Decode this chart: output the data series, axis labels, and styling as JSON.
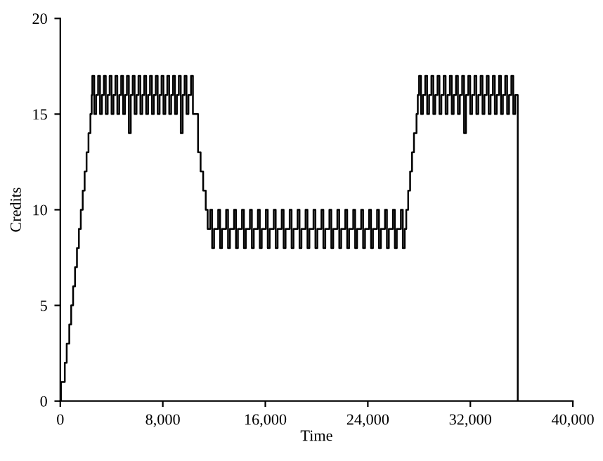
{
  "chart_data": {
    "type": "step",
    "xlabel": "Time",
    "ylabel": "Credits",
    "xlim": [
      0,
      40000
    ],
    "ylim": [
      0,
      20
    ],
    "xticks": [
      0,
      {
        "value": 8000,
        "label": "8,000"
      },
      {
        "value": 16000,
        "label": "16,000"
      },
      {
        "value": 24000,
        "label": "24,000"
      },
      {
        "value": 32000,
        "label": "32,000"
      },
      {
        "value": 40000,
        "label": "40,000"
      }
    ],
    "yticks": [
      0,
      5,
      10,
      15,
      20
    ],
    "grid": false,
    "legend": false,
    "marker": "none",
    "line_style": "solid",
    "series": [
      {
        "color": "#000000",
        "x": [
          0,
          50,
          350,
          500,
          700,
          850,
          1000,
          1150,
          1300,
          1450,
          1600,
          1750,
          1900,
          2050,
          2200,
          2350,
          2450,
          2500,
          2650,
          2800,
          2950,
          3100,
          3250,
          3400,
          3550,
          3700,
          3850,
          4000,
          4150,
          4300,
          4450,
          4600,
          4750,
          4900,
          5050,
          5200,
          5350,
          5500,
          5650,
          5800,
          5950,
          6100,
          6250,
          6400,
          6550,
          6700,
          6850,
          7000,
          7150,
          7300,
          7450,
          7600,
          7750,
          7900,
          8050,
          8200,
          8350,
          8500,
          8650,
          8800,
          8950,
          9100,
          9250,
          9400,
          9550,
          9700,
          9850,
          10000,
          10200,
          10350,
          10750,
          10950,
          11150,
          11350,
          11500,
          11700,
          11850,
          12000,
          12320,
          12470,
          12620,
          12940,
          13090,
          13240,
          13560,
          13710,
          13860,
          14180,
          14330,
          14480,
          14800,
          14950,
          15100,
          15420,
          15570,
          15720,
          16040,
          16190,
          16340,
          16660,
          16810,
          16960,
          17280,
          17430,
          17580,
          17900,
          18050,
          18200,
          18520,
          18670,
          18820,
          19140,
          19290,
          19440,
          19760,
          19910,
          20060,
          20380,
          20530,
          20680,
          21000,
          21150,
          21300,
          21620,
          21770,
          21920,
          22240,
          22390,
          22540,
          22860,
          23010,
          23160,
          23480,
          23630,
          23780,
          24100,
          24250,
          24400,
          24720,
          24870,
          25020,
          25340,
          25490,
          25640,
          25960,
          26110,
          26260,
          26580,
          26730,
          26880,
          27000,
          27150,
          27300,
          27450,
          27600,
          27800,
          27900,
          28000,
          28150,
          28300,
          28480,
          28630,
          28780,
          28960,
          29110,
          29260,
          29440,
          29590,
          29740,
          29920,
          30070,
          30220,
          30400,
          30550,
          30700,
          30880,
          31030,
          31180,
          31360,
          31510,
          31660,
          31840,
          31990,
          32140,
          32320,
          32470,
          32620,
          32800,
          32950,
          33100,
          33280,
          33430,
          33580,
          33760,
          33910,
          34060,
          34240,
          34390,
          34540,
          34720,
          34870,
          35020,
          35200,
          35350,
          35500,
          35700
        ],
        "values": [
          0,
          1,
          2,
          3,
          4,
          5,
          6,
          7,
          8,
          9,
          10,
          11,
          12,
          13,
          14,
          15,
          16,
          17,
          15,
          16,
          17,
          15,
          16,
          17,
          15,
          16,
          17,
          15,
          16,
          17,
          15,
          16,
          17,
          15,
          16,
          17,
          14,
          16,
          17,
          15,
          16,
          17,
          15,
          16,
          17,
          15,
          16,
          17,
          15,
          16,
          17,
          15,
          16,
          17,
          15,
          16,
          17,
          15,
          16,
          17,
          15,
          16,
          17,
          14,
          16,
          17,
          15,
          16,
          17,
          15,
          13,
          12,
          11,
          10,
          9,
          10,
          8,
          9,
          10,
          8,
          9,
          10,
          8,
          9,
          10,
          8,
          9,
          10,
          8,
          9,
          10,
          8,
          9,
          10,
          8,
          9,
          10,
          8,
          9,
          10,
          8,
          9,
          10,
          8,
          9,
          10,
          8,
          9,
          10,
          8,
          9,
          10,
          8,
          9,
          10,
          8,
          9,
          10,
          8,
          9,
          10,
          8,
          9,
          10,
          8,
          9,
          10,
          8,
          9,
          10,
          8,
          9,
          10,
          8,
          9,
          10,
          8,
          9,
          10,
          8,
          9,
          10,
          8,
          9,
          10,
          8,
          9,
          10,
          8,
          9,
          10,
          11,
          12,
          13,
          14,
          15,
          16,
          17,
          15,
          16,
          17,
          15,
          16,
          17,
          15,
          16,
          17,
          15,
          16,
          17,
          15,
          16,
          17,
          15,
          16,
          17,
          15,
          16,
          17,
          14,
          16,
          17,
          15,
          16,
          17,
          15,
          16,
          17,
          15,
          16,
          17,
          15,
          16,
          17,
          15,
          16,
          17,
          15,
          16,
          17,
          15,
          16,
          17,
          15,
          16,
          0
        ]
      }
    ]
  }
}
